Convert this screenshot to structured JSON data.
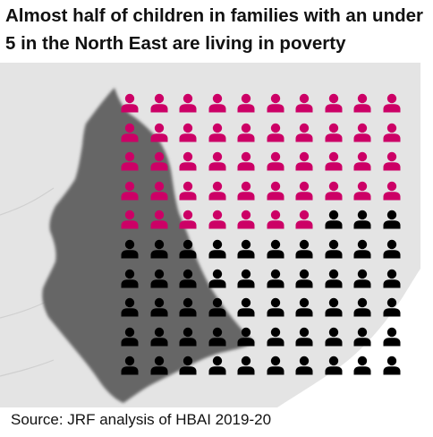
{
  "title": "Almost half of children in families with an under 5 in the North East are living in poverty",
  "source": "Source: JRF analysis of HBAI 2019-20",
  "colors": {
    "in_poverty": "#cc0066",
    "not_in_poverty": "#000000",
    "map_region": "#666666",
    "map_land": "#e4e4e4",
    "sea": "#ffffff"
  },
  "icon": "person-icon",
  "chart_data": {
    "type": "waffle",
    "title": "Almost half of children in families with an under 5 in the North East are living in poverty",
    "total_icons": 100,
    "rows": 10,
    "columns": 10,
    "series": [
      {
        "value": 47,
        "color": "#cc0066"
      },
      {
        "value": 53,
        "color": "#000000"
      }
    ]
  }
}
